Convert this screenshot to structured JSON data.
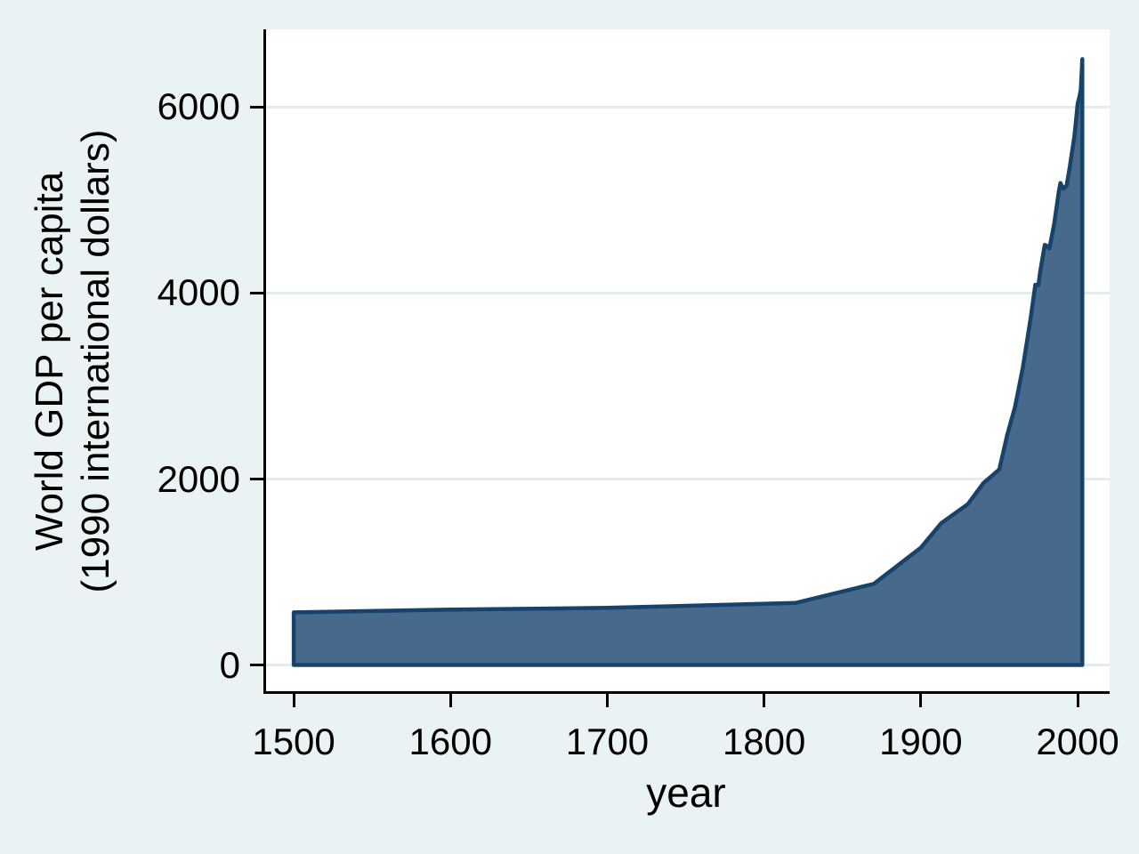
{
  "figure": {
    "background_color": "#eaf2f3",
    "plot_background_color": "#ffffff",
    "grid_color": "#e3edef",
    "axis_color": "#000000",
    "text_color": "#000000",
    "area_fill_color": "#46698c",
    "area_stroke_color": "#17436b"
  },
  "chart_data": {
    "type": "area",
    "title": "",
    "xlabel": "year",
    "ylabel": "World GDP per capita (1990 international dollars)",
    "ylabel_lines": [
      "World GDP per capita",
      "(1990 international dollars)"
    ],
    "x_ticks": [
      1500,
      1600,
      1700,
      1800,
      1900,
      2000
    ],
    "y_ticks": [
      0,
      2000,
      4000,
      6000
    ],
    "xlim": [
      1481.8,
      2020.4
    ],
    "ylim": [
      -301,
      6837
    ],
    "grid": "horizontal",
    "legend": "none",
    "baseline": 0,
    "series": [
      {
        "name": "World GDP per capita (1990 international dollars)",
        "points": [
          [
            1500,
            566
          ],
          [
            1600,
            596
          ],
          [
            1700,
            615
          ],
          [
            1820,
            667
          ],
          [
            1870,
            873
          ],
          [
            1900,
            1262
          ],
          [
            1913,
            1526
          ],
          [
            1930,
            1730
          ],
          [
            1940,
            1958
          ],
          [
            1950,
            2104
          ],
          [
            1955,
            2470
          ],
          [
            1960,
            2773
          ],
          [
            1965,
            3196
          ],
          [
            1970,
            3729
          ],
          [
            1973,
            4091
          ],
          [
            1974,
            4084
          ],
          [
            1975,
            4086
          ],
          [
            1976,
            4222
          ],
          [
            1979,
            4519
          ],
          [
            1980,
            4512
          ],
          [
            1982,
            4479
          ],
          [
            1985,
            4741
          ],
          [
            1988,
            5093
          ],
          [
            1989,
            5185
          ],
          [
            1990,
            5150
          ],
          [
            1991,
            5122
          ],
          [
            1993,
            5160
          ],
          [
            1995,
            5357
          ],
          [
            1998,
            5695
          ],
          [
            2000,
            6038
          ],
          [
            2001,
            6100
          ],
          [
            2002,
            6188
          ],
          [
            2003,
            6516
          ]
        ]
      }
    ]
  }
}
